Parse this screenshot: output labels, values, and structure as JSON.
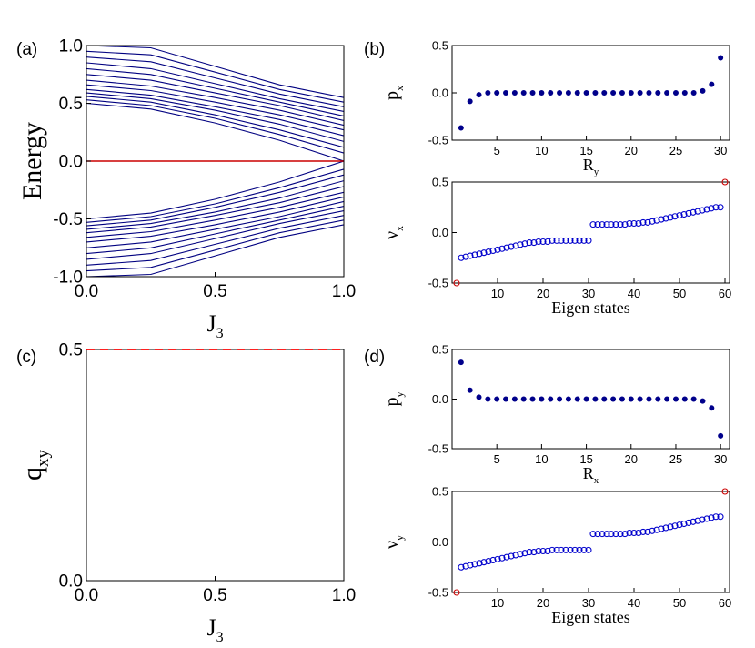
{
  "panels": {
    "a": {
      "label": "(a)"
    },
    "b": {
      "label": "(b)"
    },
    "c": {
      "label": "(c)"
    },
    "d": {
      "label": "(d)"
    }
  },
  "chart_data": [
    {
      "id": "a",
      "type": "line",
      "xlabel": "J",
      "xlabel_sub": "3",
      "ylabel": "Energy",
      "xlim": [
        0,
        1
      ],
      "ylim": [
        -1,
        1
      ],
      "xticks": [
        "0.0",
        "0.5",
        "1.0"
      ],
      "yticks": [
        "-1.0",
        "-0.5",
        "0.0",
        "0.5",
        "1.0"
      ],
      "band_color": "#000080",
      "zero_line_color": "#cc0000",
      "series": [
        {
          "x": [
            0,
            0.25,
            0.5,
            0.75,
            1.0
          ],
          "y": [
            0.5,
            0.45,
            0.33,
            0.18,
            0.0
          ]
        },
        {
          "x": [
            0,
            0.25,
            0.5,
            0.75,
            1.0
          ],
          "y": [
            0.53,
            0.48,
            0.37,
            0.23,
            0.07
          ]
        },
        {
          "x": [
            0,
            0.25,
            0.5,
            0.75,
            1.0
          ],
          "y": [
            0.56,
            0.51,
            0.4,
            0.27,
            0.12
          ]
        },
        {
          "x": [
            0,
            0.25,
            0.5,
            0.75,
            1.0
          ],
          "y": [
            0.59,
            0.54,
            0.44,
            0.32,
            0.17
          ]
        },
        {
          "x": [
            0,
            0.25,
            0.5,
            0.75,
            1.0
          ],
          "y": [
            0.62,
            0.57,
            0.47,
            0.36,
            0.22
          ]
        },
        {
          "x": [
            0,
            0.25,
            0.5,
            0.75,
            1.0
          ],
          "y": [
            0.66,
            0.61,
            0.51,
            0.4,
            0.27
          ]
        },
        {
          "x": [
            0,
            0.25,
            0.5,
            0.75,
            1.0
          ],
          "y": [
            0.7,
            0.65,
            0.55,
            0.44,
            0.31
          ]
        },
        {
          "x": [
            0,
            0.25,
            0.5,
            0.75,
            1.0
          ],
          "y": [
            0.75,
            0.7,
            0.59,
            0.48,
            0.35
          ]
        },
        {
          "x": [
            0,
            0.25,
            0.5,
            0.75,
            1.0
          ],
          "y": [
            0.8,
            0.75,
            0.63,
            0.51,
            0.39
          ]
        },
        {
          "x": [
            0,
            0.25,
            0.5,
            0.75,
            1.0
          ],
          "y": [
            0.85,
            0.8,
            0.67,
            0.54,
            0.43
          ]
        },
        {
          "x": [
            0,
            0.25,
            0.5,
            0.75,
            1.0
          ],
          "y": [
            0.9,
            0.86,
            0.72,
            0.58,
            0.47
          ]
        },
        {
          "x": [
            0,
            0.25,
            0.5,
            0.75,
            1.0
          ],
          "y": [
            0.95,
            0.92,
            0.77,
            0.62,
            0.51
          ]
        },
        {
          "x": [
            0,
            0.25,
            0.5,
            0.75,
            1.0
          ],
          "y": [
            1.0,
            0.98,
            0.82,
            0.66,
            0.55
          ]
        },
        {
          "x": [
            0,
            0.25,
            0.5,
            0.75,
            1.0
          ],
          "y": [
            -0.5,
            -0.45,
            -0.33,
            -0.18,
            0.0
          ]
        },
        {
          "x": [
            0,
            0.25,
            0.5,
            0.75,
            1.0
          ],
          "y": [
            -0.53,
            -0.48,
            -0.37,
            -0.23,
            -0.07
          ]
        },
        {
          "x": [
            0,
            0.25,
            0.5,
            0.75,
            1.0
          ],
          "y": [
            -0.56,
            -0.51,
            -0.4,
            -0.27,
            -0.12
          ]
        },
        {
          "x": [
            0,
            0.25,
            0.5,
            0.75,
            1.0
          ],
          "y": [
            -0.59,
            -0.54,
            -0.44,
            -0.32,
            -0.17
          ]
        },
        {
          "x": [
            0,
            0.25,
            0.5,
            0.75,
            1.0
          ],
          "y": [
            -0.62,
            -0.57,
            -0.47,
            -0.36,
            -0.22
          ]
        },
        {
          "x": [
            0,
            0.25,
            0.5,
            0.75,
            1.0
          ],
          "y": [
            -0.66,
            -0.61,
            -0.51,
            -0.4,
            -0.27
          ]
        },
        {
          "x": [
            0,
            0.25,
            0.5,
            0.75,
            1.0
          ],
          "y": [
            -0.7,
            -0.65,
            -0.55,
            -0.44,
            -0.31
          ]
        },
        {
          "x": [
            0,
            0.25,
            0.5,
            0.75,
            1.0
          ],
          "y": [
            -0.75,
            -0.7,
            -0.59,
            -0.48,
            -0.35
          ]
        },
        {
          "x": [
            0,
            0.25,
            0.5,
            0.75,
            1.0
          ],
          "y": [
            -0.8,
            -0.75,
            -0.63,
            -0.51,
            -0.39
          ]
        },
        {
          "x": [
            0,
            0.25,
            0.5,
            0.75,
            1.0
          ],
          "y": [
            -0.85,
            -0.8,
            -0.67,
            -0.54,
            -0.43
          ]
        },
        {
          "x": [
            0,
            0.25,
            0.5,
            0.75,
            1.0
          ],
          "y": [
            -0.9,
            -0.86,
            -0.72,
            -0.58,
            -0.47
          ]
        },
        {
          "x": [
            0,
            0.25,
            0.5,
            0.75,
            1.0
          ],
          "y": [
            -0.95,
            -0.92,
            -0.77,
            -0.62,
            -0.51
          ]
        },
        {
          "x": [
            0,
            0.25,
            0.5,
            0.75,
            1.0
          ],
          "y": [
            -1.0,
            -0.98,
            -0.82,
            -0.66,
            -0.55
          ]
        },
        {
          "x": [
            0,
            1.0
          ],
          "y": [
            0,
            0
          ],
          "role": "zero-mode"
        }
      ]
    },
    {
      "id": "b-top",
      "type": "scatter",
      "xlabel": "R",
      "xlabel_sub": "y",
      "ylabel": "p",
      "ylabel_sub": "x",
      "xlim": [
        0,
        31
      ],
      "ylim": [
        -0.5,
        0.5
      ],
      "xticks": [
        "5",
        "10",
        "15",
        "20",
        "25",
        "30"
      ],
      "yticks": [
        "-0.5",
        "0.0",
        "0.5"
      ],
      "marker": "filled",
      "color": "#00008b",
      "x": [
        1,
        2,
        3,
        4,
        5,
        6,
        7,
        8,
        9,
        10,
        11,
        12,
        13,
        14,
        15,
        16,
        17,
        18,
        19,
        20,
        21,
        22,
        23,
        24,
        25,
        26,
        27,
        28,
        29,
        30
      ],
      "y": [
        -0.37,
        -0.09,
        -0.02,
        0,
        0,
        0,
        0,
        0,
        0,
        0,
        0,
        0,
        0,
        0,
        0,
        0,
        0,
        0,
        0,
        0,
        0,
        0,
        0,
        0,
        0,
        0,
        0,
        0.02,
        0.09,
        0.37
      ]
    },
    {
      "id": "b-bottom",
      "type": "scatter",
      "xlabel": "Eigen states",
      "ylabel": "ν",
      "ylabel_sub": "x",
      "xlim": [
        0,
        61
      ],
      "ylim": [
        -0.5,
        0.5
      ],
      "xticks": [
        "10",
        "20",
        "30",
        "40",
        "50",
        "60"
      ],
      "yticks": [
        "-0.5",
        "0.0",
        "0.5"
      ],
      "marker": "open",
      "color": "#0000cc",
      "edge_color": "#cc0000",
      "x": [
        1,
        2,
        3,
        4,
        5,
        6,
        7,
        8,
        9,
        10,
        11,
        12,
        13,
        14,
        15,
        16,
        17,
        18,
        19,
        20,
        21,
        22,
        23,
        24,
        25,
        26,
        27,
        28,
        29,
        30,
        31,
        32,
        33,
        34,
        35,
        36,
        37,
        38,
        39,
        40,
        41,
        42,
        43,
        44,
        45,
        46,
        47,
        48,
        49,
        50,
        51,
        52,
        53,
        54,
        55,
        56,
        57,
        58,
        59,
        60
      ],
      "y": [
        -0.5,
        -0.25,
        -0.24,
        -0.23,
        -0.22,
        -0.21,
        -0.2,
        -0.19,
        -0.18,
        -0.17,
        -0.16,
        -0.15,
        -0.14,
        -0.13,
        -0.12,
        -0.11,
        -0.1,
        -0.1,
        -0.09,
        -0.09,
        -0.09,
        -0.08,
        -0.08,
        -0.08,
        -0.08,
        -0.08,
        -0.08,
        -0.08,
        -0.08,
        -0.08,
        0.08,
        0.08,
        0.08,
        0.08,
        0.08,
        0.08,
        0.08,
        0.08,
        0.09,
        0.09,
        0.09,
        0.1,
        0.1,
        0.11,
        0.12,
        0.13,
        0.14,
        0.15,
        0.16,
        0.17,
        0.18,
        0.19,
        0.2,
        0.21,
        0.22,
        0.23,
        0.24,
        0.25,
        0.25,
        0.5
      ],
      "edge_points": [
        1,
        60
      ]
    },
    {
      "id": "c",
      "type": "line",
      "xlabel": "J",
      "xlabel_sub": "3",
      "ylabel": "q",
      "ylabel_sub": "xy",
      "xlim": [
        0,
        1
      ],
      "ylim": [
        0,
        0.5
      ],
      "xticks": [
        "0.0",
        "0.5",
        "1.0"
      ],
      "yticks": [
        "0.0",
        "0.5"
      ],
      "color": "#ff0000",
      "line_style": "dashed",
      "x": [
        0,
        1
      ],
      "y": [
        0.5,
        0.5
      ]
    },
    {
      "id": "d-top",
      "type": "scatter",
      "xlabel": "R",
      "xlabel_sub": "x",
      "ylabel": "p",
      "ylabel_sub": "y",
      "xlim": [
        0,
        31
      ],
      "ylim": [
        -0.5,
        0.5
      ],
      "xticks": [
        "5",
        "10",
        "15",
        "20",
        "25",
        "30"
      ],
      "yticks": [
        "-0.5",
        "0.0",
        "0.5"
      ],
      "marker": "filled",
      "color": "#00008b",
      "x": [
        1,
        2,
        3,
        4,
        5,
        6,
        7,
        8,
        9,
        10,
        11,
        12,
        13,
        14,
        15,
        16,
        17,
        18,
        19,
        20,
        21,
        22,
        23,
        24,
        25,
        26,
        27,
        28,
        29,
        30
      ],
      "y": [
        0.37,
        0.09,
        0.02,
        0,
        0,
        0,
        0,
        0,
        0,
        0,
        0,
        0,
        0,
        0,
        0,
        0,
        0,
        0,
        0,
        0,
        0,
        0,
        0,
        0,
        0,
        0,
        0,
        -0.02,
        -0.09,
        -0.37
      ]
    },
    {
      "id": "d-bottom",
      "type": "scatter",
      "xlabel": "Eigen states",
      "ylabel": "ν",
      "ylabel_sub": "y",
      "xlim": [
        0,
        61
      ],
      "ylim": [
        -0.5,
        0.5
      ],
      "xticks": [
        "10",
        "20",
        "30",
        "40",
        "50",
        "60"
      ],
      "yticks": [
        "-0.5",
        "0.0",
        "0.5"
      ],
      "marker": "open",
      "color": "#0000cc",
      "edge_color": "#cc0000",
      "x": [
        1,
        2,
        3,
        4,
        5,
        6,
        7,
        8,
        9,
        10,
        11,
        12,
        13,
        14,
        15,
        16,
        17,
        18,
        19,
        20,
        21,
        22,
        23,
        24,
        25,
        26,
        27,
        28,
        29,
        30,
        31,
        32,
        33,
        34,
        35,
        36,
        37,
        38,
        39,
        40,
        41,
        42,
        43,
        44,
        45,
        46,
        47,
        48,
        49,
        50,
        51,
        52,
        53,
        54,
        55,
        56,
        57,
        58,
        59,
        60
      ],
      "y": [
        -0.5,
        -0.25,
        -0.24,
        -0.23,
        -0.22,
        -0.21,
        -0.2,
        -0.19,
        -0.18,
        -0.17,
        -0.16,
        -0.15,
        -0.14,
        -0.13,
        -0.12,
        -0.11,
        -0.1,
        -0.1,
        -0.09,
        -0.09,
        -0.09,
        -0.08,
        -0.08,
        -0.08,
        -0.08,
        -0.08,
        -0.08,
        -0.08,
        -0.08,
        -0.08,
        0.08,
        0.08,
        0.08,
        0.08,
        0.08,
        0.08,
        0.08,
        0.08,
        0.09,
        0.09,
        0.09,
        0.1,
        0.1,
        0.11,
        0.12,
        0.13,
        0.14,
        0.15,
        0.16,
        0.17,
        0.18,
        0.19,
        0.2,
        0.21,
        0.22,
        0.23,
        0.24,
        0.25,
        0.25,
        0.5
      ],
      "edge_points": [
        1,
        60
      ]
    }
  ]
}
